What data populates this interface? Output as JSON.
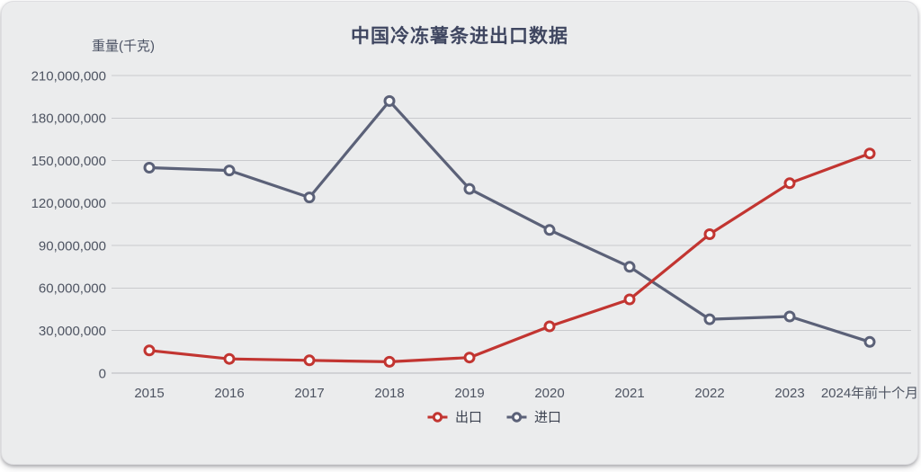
{
  "chart_data": {
    "type": "line",
    "title": "中国冷冻薯条进出口数据",
    "ylabel": "重量(千克)",
    "xlabel": "",
    "categories": [
      "2015",
      "2016",
      "2017",
      "2018",
      "2019",
      "2020",
      "2021",
      "2022",
      "2023",
      "2024年前十个月"
    ],
    "series": [
      {
        "key": "export",
        "name": "出口",
        "color": "#c23531",
        "values": [
          16000000,
          10000000,
          9000000,
          8000000,
          11000000,
          33000000,
          52000000,
          98000000,
          134000000,
          155000000
        ]
      },
      {
        "key": "import",
        "name": "进口",
        "color": "#5b6178",
        "values": [
          145000000,
          143000000,
          124000000,
          192000000,
          130000000,
          101000000,
          75000000,
          38000000,
          40000000,
          22000000
        ]
      }
    ],
    "ylim": [
      0,
      210000000
    ],
    "ytick_step": 30000000,
    "ytick_labels": [
      "0",
      "30,000,000",
      "60,000,000",
      "90,000,000",
      "120,000,000",
      "150,000,000",
      "180,000,000",
      "210,000,000"
    ],
    "grid": "horizontal-only",
    "legend_position": "bottom-center",
    "marker": "open-circle"
  },
  "style": {
    "card_background": "#ebeced",
    "grid_color": "#c9cacd",
    "axis_line_color": "#b7b8bd",
    "tick_label_color": "#4e5462",
    "title_color": "#3f4660",
    "legend_text_color": "#3c4250",
    "marker_fill": "#fafafa"
  }
}
